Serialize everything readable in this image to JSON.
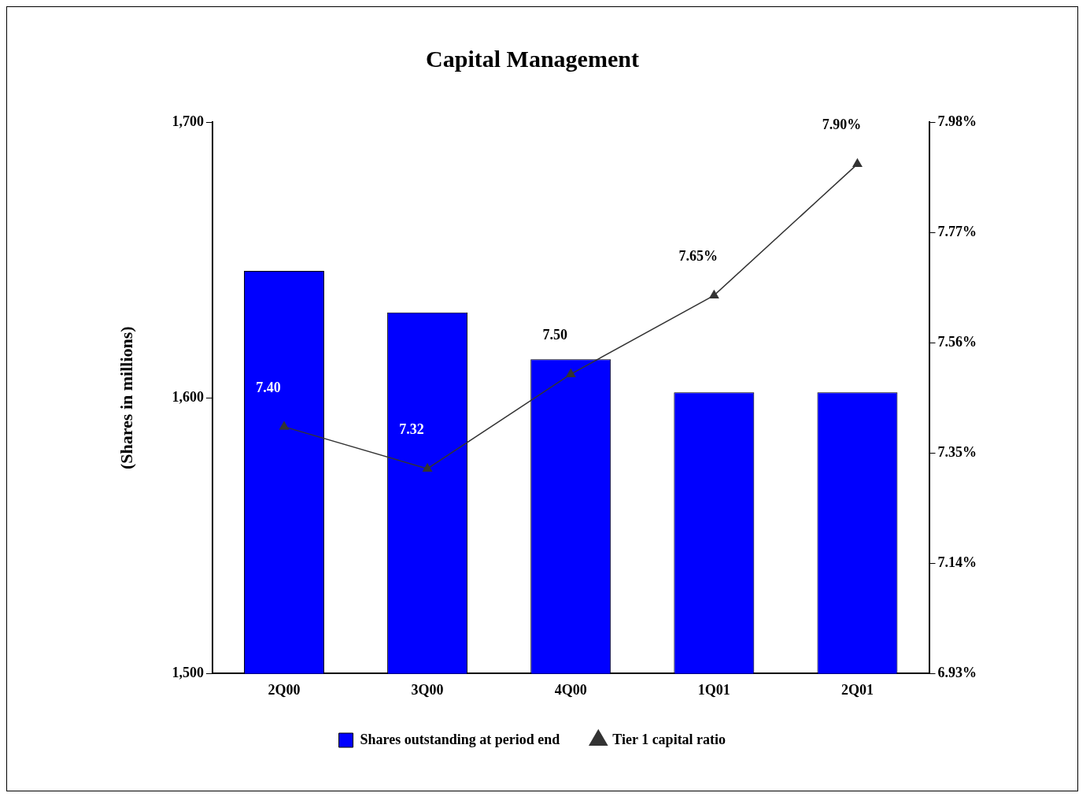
{
  "chart_data": {
    "type": "bar",
    "title": "Capital Management",
    "ylabel": "(Shares in millions)",
    "categories": [
      "2Q00",
      "3Q00",
      "4Q00",
      "1Q01",
      "2Q01"
    ],
    "series": [
      {
        "name": "Shares outstanding at period end",
        "color": "#0000ff",
        "values": [
          1646,
          1631,
          1614,
          1602,
          1602
        ]
      },
      {
        "type": "line",
        "name": "Tier 1 capital ratio",
        "color": "#333333",
        "axis": "y2",
        "marker": "triangle",
        "values": [
          7.4,
          7.32,
          7.5,
          7.65,
          7.9
        ],
        "value_labels": [
          "7.40",
          "7.32",
          "7.50",
          "7.65%",
          "7.90%"
        ]
      }
    ],
    "ylim": [
      1500,
      1700
    ],
    "yticks": [
      {
        "value": 1500,
        "label": "1,500"
      },
      {
        "value": 1600,
        "label": "1,600"
      },
      {
        "value": 1700,
        "label": "1,700"
      }
    ],
    "y2lim": [
      6.93,
      7.98
    ],
    "y2ticks": [
      {
        "value": 6.93,
        "label": "6.93%"
      },
      {
        "value": 7.14,
        "label": "7.14%"
      },
      {
        "value": 7.35,
        "label": "7.35%"
      },
      {
        "value": 7.56,
        "label": "7.56%"
      },
      {
        "value": 7.77,
        "label": "7.77%"
      },
      {
        "value": 7.98,
        "label": "7.98%"
      }
    ],
    "grid": false,
    "legend": "bottom"
  }
}
